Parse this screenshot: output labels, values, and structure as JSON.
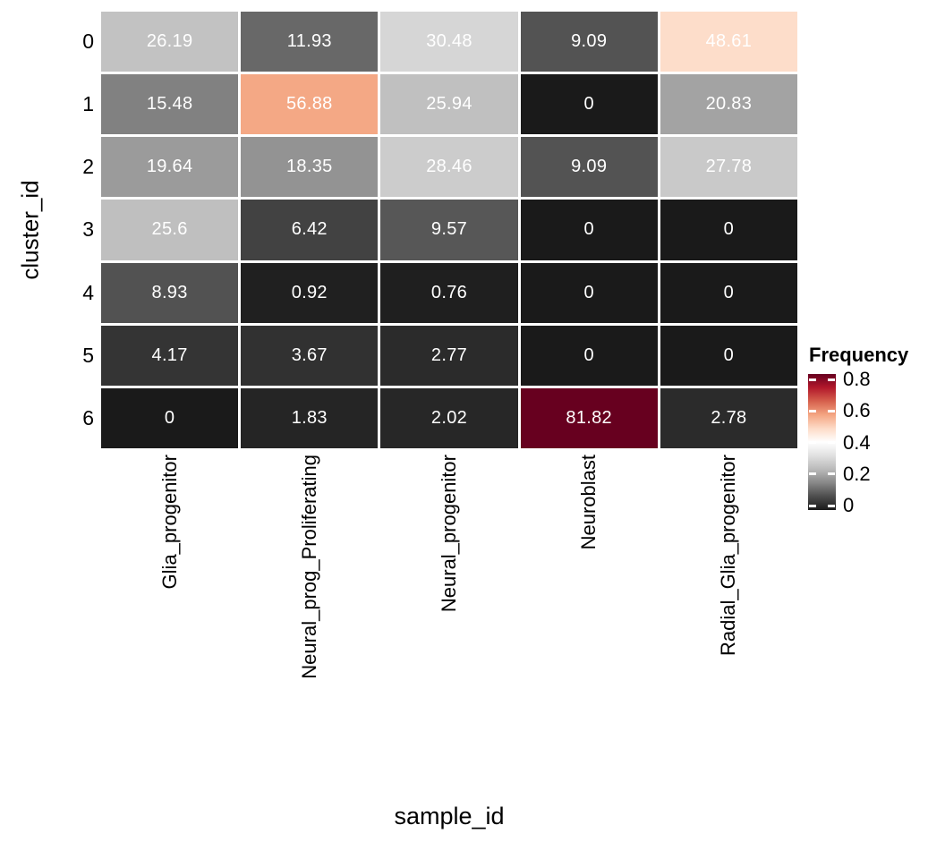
{
  "figure": {
    "background_color": "#ffffff",
    "cell_text_color": "#ffffff",
    "grid_line_color": "#ffffff"
  },
  "chart_data": {
    "type": "heatmap",
    "title": "",
    "xlabel": "sample_id",
    "ylabel": "cluster_id",
    "rows": [
      "0",
      "1",
      "2",
      "3",
      "4",
      "5",
      "6"
    ],
    "columns": [
      "Glia_progenitor",
      "Neural_prog_Proliferating",
      "Neural_progenitor",
      "Neuroblast",
      "Radial_Glia_progenitor"
    ],
    "values": [
      [
        26.19,
        11.93,
        30.48,
        9.09,
        48.61
      ],
      [
        15.48,
        56.88,
        25.94,
        0,
        20.83
      ],
      [
        19.64,
        18.35,
        28.46,
        9.09,
        27.78
      ],
      [
        25.6,
        6.42,
        9.57,
        0,
        0
      ],
      [
        8.93,
        0.92,
        0.76,
        0,
        0
      ],
      [
        4.17,
        3.67,
        2.77,
        0,
        0
      ],
      [
        0,
        1.83,
        2.02,
        81.82,
        2.78
      ]
    ],
    "cell_labels": [
      [
        "26.19",
        "11.93",
        "30.48",
        "9.09",
        "48.61"
      ],
      [
        "15.48",
        "56.88",
        "25.94",
        "0",
        "20.83"
      ],
      [
        "19.64",
        "18.35",
        "28.46",
        "9.09",
        "27.78"
      ],
      [
        "25.6",
        "6.42",
        "9.57",
        "0",
        "0"
      ],
      [
        "8.93",
        "0.92",
        "0.76",
        "0",
        "0"
      ],
      [
        "4.17",
        "3.67",
        "2.77",
        "0",
        "0"
      ],
      [
        "0",
        "1.83",
        "2.02",
        "81.82",
        "2.78"
      ]
    ],
    "colormap": {
      "name": "RdGy-reversed",
      "stops": [
        "#1a1a1a",
        "#4d4d4d",
        "#878787",
        "#bababa",
        "#e0e0e0",
        "#ffffff",
        "#fddbc7",
        "#f4a582",
        "#d6604d",
        "#b2182b",
        "#67001f"
      ],
      "domain": [
        0,
        81.82
      ]
    },
    "legend": {
      "title": "Frequency",
      "tick_labels": [
        "0.8",
        "0.6",
        "0.4",
        "0.2",
        "0"
      ],
      "tick_values": [
        0.8,
        0.6,
        0.4,
        0.2,
        0
      ],
      "domain": [
        0,
        0.8182
      ],
      "position": "right"
    },
    "grid": "white cell separators",
    "legend_position": "right"
  }
}
